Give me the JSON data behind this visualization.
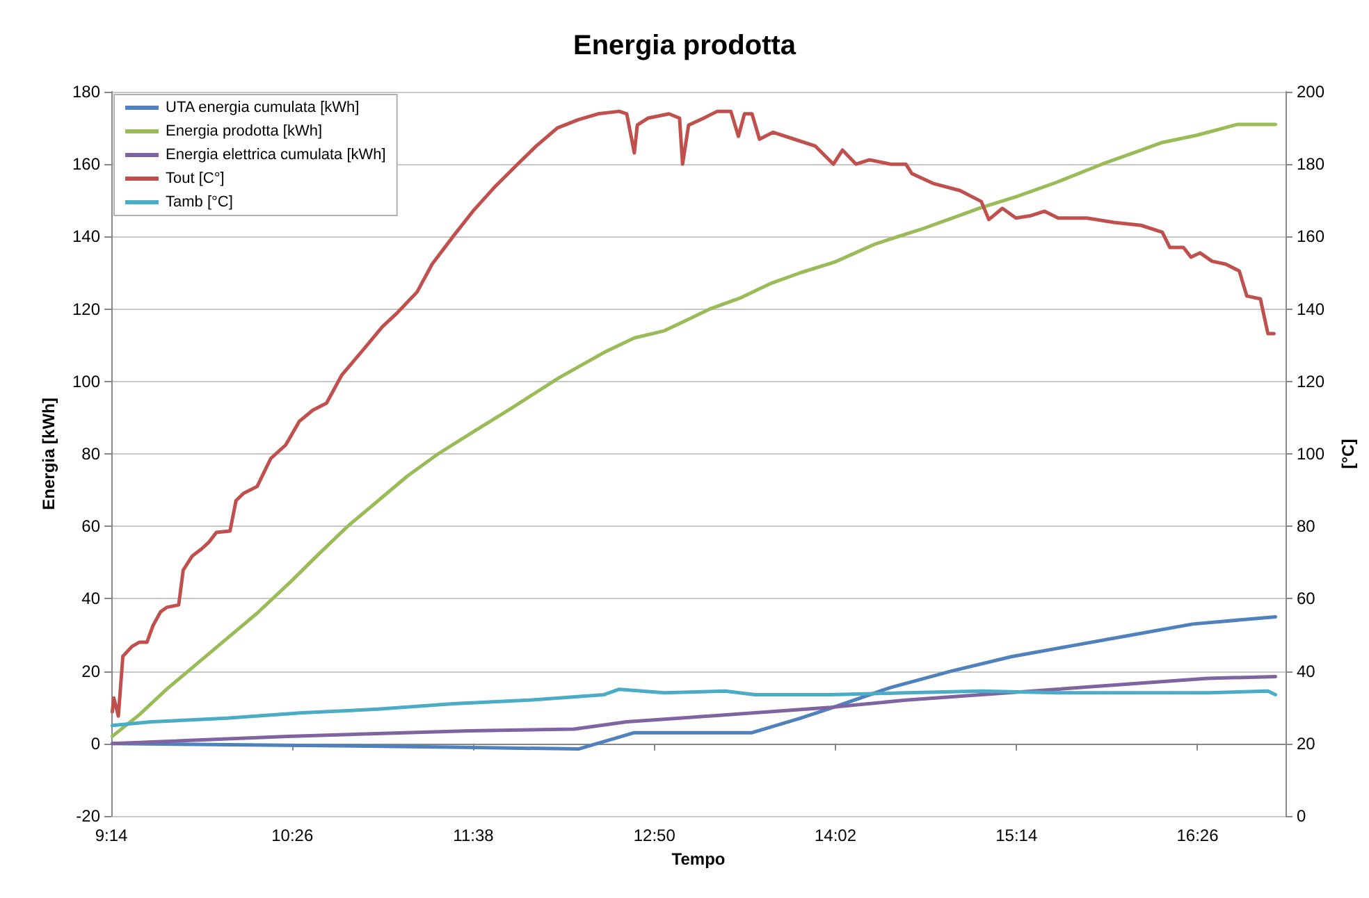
{
  "chart_data": {
    "type": "line",
    "title": "Energia prodotta",
    "xlabel": "Tempo",
    "ylabel": "Energia [kWh]",
    "y2label": "[°C]",
    "xlim": [
      9.2333,
      17.0167
    ],
    "xticks": [
      {
        "value": 9.2333,
        "label": "9:14"
      },
      {
        "value": 10.4333,
        "label": "10:26"
      },
      {
        "value": 11.6333,
        "label": "11:38"
      },
      {
        "value": 12.8333,
        "label": "12:50"
      },
      {
        "value": 14.0333,
        "label": "14:02"
      },
      {
        "value": 15.2333,
        "label": "15:14"
      },
      {
        "value": 16.4333,
        "label": "16:26"
      }
    ],
    "ylim": [
      -20,
      180
    ],
    "yticks": [
      -20,
      0,
      20,
      40,
      60,
      80,
      100,
      120,
      140,
      160,
      180
    ],
    "y2lim": [
      0,
      200
    ],
    "y2ticks": [
      0,
      20,
      40,
      60,
      80,
      100,
      120,
      140,
      160,
      180,
      200
    ],
    "grid": "y",
    "legend": "top left",
    "series": [
      {
        "name": "UTA energia cumulata [kWh]",
        "color": "#4f81bd",
        "x": [
          9.24,
          10.5,
          11.5,
          12.33,
          12.7,
          13.48,
          13.8,
          14.02,
          14.4,
          14.8,
          15.2,
          15.6,
          16.0,
          16.4,
          16.95
        ],
        "values": [
          0,
          -0.5,
          -1,
          -1.5,
          3,
          3,
          7,
          10,
          15.5,
          20,
          24,
          27,
          30,
          33,
          35
        ]
      },
      {
        "name": "Energia prodotta [kWh]",
        "color": "#9bbb59",
        "x": [
          9.24,
          9.42,
          9.6,
          9.8,
          10.0,
          10.2,
          10.43,
          10.6,
          10.8,
          11.0,
          11.2,
          11.4,
          11.63,
          11.9,
          12.2,
          12.5,
          12.7,
          12.9,
          13.0,
          13.2,
          13.4,
          13.6,
          13.8,
          14.03,
          14.3,
          14.6,
          14.8,
          15.0,
          15.23,
          15.5,
          15.8,
          16.0,
          16.2,
          16.43,
          16.7,
          16.85,
          16.95
        ],
        "values": [
          2,
          8,
          15,
          22,
          29,
          36,
          45,
          52,
          60,
          67,
          74,
          80,
          86,
          93,
          101,
          108,
          112,
          114,
          116,
          120,
          123,
          127,
          130,
          133,
          138,
          142,
          145,
          148,
          151,
          155,
          160,
          163,
          166,
          168,
          171,
          171,
          171
        ]
      },
      {
        "name": "Energia elettrica cumulata [kWh]",
        "color": "#8064a2",
        "x": [
          9.24,
          10.4,
          11.6,
          12.3,
          12.65,
          13.0,
          13.5,
          14.0,
          14.5,
          15.0,
          15.5,
          16.0,
          16.5,
          16.95
        ],
        "values": [
          0,
          2,
          3.5,
          4,
          6,
          7,
          8.5,
          10,
          12,
          13.5,
          15,
          16.5,
          18,
          18.5
        ]
      },
      {
        "name": "Tout [C°]",
        "color": "#c0504d",
        "axis": "y2",
        "x": [
          9.24,
          9.25,
          9.28,
          9.31,
          9.37,
          9.42,
          9.47,
          9.51,
          9.56,
          9.6,
          9.68,
          9.71,
          9.77,
          9.83,
          9.88,
          9.93,
          10.02,
          10.06,
          10.11,
          10.2,
          10.29,
          10.39,
          10.48,
          10.57,
          10.66,
          10.76,
          10.9,
          11.03,
          11.13,
          11.26,
          11.36,
          11.5,
          11.63,
          11.77,
          11.91,
          12.05,
          12.19,
          12.33,
          12.46,
          12.6,
          12.65,
          12.7,
          12.72,
          12.79,
          12.93,
          13.0,
          13.02,
          13.06,
          13.16,
          13.25,
          13.34,
          13.39,
          13.43,
          13.48,
          13.53,
          13.62,
          13.76,
          13.9,
          14.02,
          14.08,
          14.17,
          14.26,
          14.4,
          14.5,
          14.54,
          14.68,
          14.86,
          15.0,
          15.05,
          15.14,
          15.23,
          15.33,
          15.42,
          15.51,
          15.7,
          15.88,
          16.06,
          16.2,
          16.25,
          16.34,
          16.39,
          16.45,
          16.53,
          16.62,
          16.71,
          16.76,
          16.85,
          16.9,
          16.94
        ],
        "values": [
          28.8,
          32.6,
          27.6,
          44.1,
          46.8,
          48,
          48,
          52.6,
          56.4,
          57.6,
          58.3,
          67.9,
          71.8,
          73.7,
          75.6,
          78.3,
          78.7,
          87.1,
          89.1,
          91,
          98.7,
          102.5,
          109,
          112.1,
          114,
          121.7,
          128.6,
          135.1,
          139,
          144.7,
          152.4,
          160.1,
          167,
          173.5,
          179.3,
          185,
          190,
          192.3,
          193.9,
          194.6,
          193.9,
          183.1,
          190.8,
          192.7,
          193.9,
          192.7,
          180,
          190.8,
          192.7,
          194.6,
          194.6,
          187.7,
          193.9,
          193.9,
          186.9,
          188.8,
          186.9,
          185,
          180,
          183.9,
          180,
          181.2,
          180,
          180,
          177.4,
          174.7,
          172.7,
          169.7,
          164.7,
          167.8,
          165.1,
          165.8,
          167,
          165.1,
          165.1,
          163.9,
          163.1,
          161.2,
          157,
          157,
          154.3,
          155.5,
          153.2,
          152.4,
          150.5,
          143.6,
          142.8,
          133.2,
          133.2
        ]
      },
      {
        "name": "Tamb [°C]",
        "color": "#4bacc6",
        "axis": "y2",
        "x": [
          9.24,
          9.5,
          10.0,
          10.5,
          11.0,
          11.5,
          12.0,
          12.5,
          12.6,
          12.9,
          13.3,
          13.5,
          14.0,
          14.5,
          15.0,
          15.5,
          16.0,
          16.5,
          16.9,
          16.95
        ],
        "values": [
          25,
          26,
          27,
          28.5,
          29.5,
          31,
          32,
          33.5,
          35,
          34,
          34.5,
          33.5,
          33.5,
          34,
          34.5,
          34,
          34,
          34,
          34.5,
          33.5
        ]
      }
    ]
  }
}
